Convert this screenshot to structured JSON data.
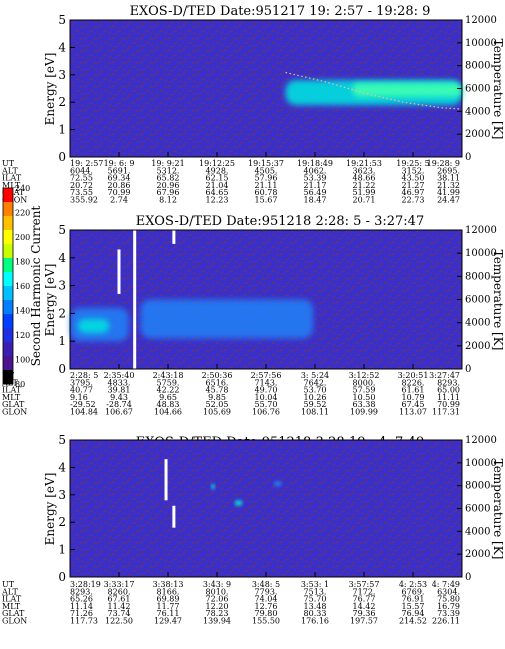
{
  "colorbar": {
    "label": "Second Harmonic Current",
    "ticks": [
      "240",
      "220",
      "200",
      "180",
      "160",
      "140",
      "120",
      "100",
      "80"
    ],
    "colors": [
      "#ff0000",
      "#ff8000",
      "#ffc000",
      "#ffff00",
      "#c8ff00",
      "#00ff80",
      "#00ffff",
      "#00c0ff",
      "#0080ff",
      "#0040ff",
      "#2030e0",
      "#3a1fb0",
      "#4b148f",
      "#000000"
    ]
  },
  "colors": {
    "background": "#3a30c8",
    "noise": "#a0301a"
  },
  "chart_data": [
    {
      "type": "heatmap",
      "title": "EXOS-D/TED   Date:951217  19: 2:57 - 19:28: 9",
      "ylabel": "Energy [eV]",
      "y2label": "Temperature [K]",
      "ylim": [
        0,
        5
      ],
      "y2lim": [
        0,
        12000
      ],
      "yticks": [
        "0",
        "1",
        "2",
        "3",
        "4",
        "5"
      ],
      "y2ticks": [
        "0",
        "2000",
        "4000",
        "6000",
        "8000",
        "10000",
        "12000"
      ],
      "features": [
        {
          "x0": 0.55,
          "x1": 1.0,
          "e0": 1.9,
          "e1": 2.8,
          "level": "high"
        },
        {
          "x0": 0.72,
          "x1": 1.0,
          "e0": 2.2,
          "e1": 2.7,
          "level": "peak"
        }
      ],
      "temperature_trace": {
        "x": [
          0.55,
          0.65,
          0.75,
          0.85,
          0.95,
          1.0
        ],
        "t": [
          7400,
          6600,
          5600,
          4800,
          4300,
          4200
        ]
      },
      "ephemeris": [
        {
          "label": "UT",
          "values": [
            "19: 2:57",
            "19: 6: 9",
            "19: 9:21",
            "19:12:25",
            "19:15:37",
            "19:18:49",
            "19:21:53",
            "19:25: 5",
            "19:28: 9"
          ]
        },
        {
          "label": "ALT",
          "values": [
            "6044.",
            "5691.",
            "5312.",
            "4928.",
            "4505.",
            "4062.",
            "3623.",
            "3152.",
            "2695."
          ]
        },
        {
          "label": "ILAT",
          "values": [
            "72.55",
            "69.34",
            "65.82",
            "62.15",
            "57.96",
            "53.39",
            "48.66",
            "43.50",
            "38.11"
          ]
        },
        {
          "label": "MLT",
          "values": [
            "20.72",
            "20.86",
            "20.96",
            "21.04",
            "21.11",
            "21.17",
            "21.22",
            "21.27",
            "21.32"
          ]
        },
        {
          "label": "GLAT",
          "values": [
            "73.55",
            "70.99",
            "67.96",
            "64.65",
            "60.78",
            "56.49",
            "51.99",
            "46.97",
            "41.99"
          ]
        },
        {
          "label": "GLON",
          "values": [
            "355.92",
            "2.74",
            "8.12",
            "12.23",
            "15.67",
            "18.47",
            "20.71",
            "22.73",
            "24.47"
          ]
        }
      ]
    },
    {
      "type": "heatmap",
      "title": "EXOS-D/TED   Date:951218  2:28: 5 - 3:27:47",
      "ylabel": "Energy [eV]",
      "y2label": "Temperature [K]",
      "ylim": [
        0,
        5
      ],
      "y2lim": [
        0,
        12000
      ],
      "yticks": [
        "0",
        "1",
        "2",
        "3",
        "4",
        "5"
      ],
      "y2ticks": [
        "0",
        "2000",
        "4000",
        "6000",
        "8000",
        "10000",
        "12000"
      ],
      "features": [
        {
          "x0": 0.0,
          "x1": 0.15,
          "e0": 1.0,
          "e1": 2.2,
          "level": "mid"
        },
        {
          "x0": 0.18,
          "x1": 0.62,
          "e0": 1.1,
          "e1": 2.5,
          "level": "mid"
        },
        {
          "x0": 0.02,
          "x1": 0.1,
          "e0": 1.3,
          "e1": 1.8,
          "level": "high"
        }
      ],
      "data_gaps": [
        {
          "x": 0.125,
          "e0": 2.7,
          "e1": 4.3
        },
        {
          "x": 0.165,
          "e0": 0.0,
          "e1": 5.0
        },
        {
          "x": 0.265,
          "e0": 4.5,
          "e1": 5.0
        }
      ],
      "ephemeris": [
        {
          "label": "UT",
          "values": [
            "2:28: 5",
            "2:35:40",
            "2:43:18",
            "2:50:36",
            "2:57:56",
            "3: 5:24",
            "3:12:52",
            "3:20:51",
            "3:27:47"
          ]
        },
        {
          "label": "ALT",
          "values": [
            "3795.",
            "4833.",
            "5759.",
            "6516.",
            "7143.",
            "7642.",
            "8000.",
            "8226.",
            "8293."
          ]
        },
        {
          "label": "ILAT",
          "values": [
            "40.77",
            "39.81",
            "42.22",
            "45.78",
            "49.70",
            "53.70",
            "57.59",
            "61.61",
            "65.00"
          ]
        },
        {
          "label": "MLT",
          "values": [
            "9.16",
            "9.43",
            "9.65",
            "9.85",
            "10.04",
            "10.26",
            "10.50",
            "10.79",
            "11.11"
          ]
        },
        {
          "label": "GLAT",
          "values": [
            "-29.52",
            "-28.74",
            "48.83",
            "52.05",
            "55.70",
            "59.52",
            "63.38",
            "67.45",
            "70.99"
          ]
        },
        {
          "label": "GLON",
          "values": [
            "104.84",
            "106.67",
            "104.66",
            "105.69",
            "106.76",
            "108.11",
            "109.99",
            "113.07",
            "117.31"
          ]
        }
      ]
    },
    {
      "type": "heatmap",
      "title": "EXOS-D/TED   Date:951218  3:28:19 - 4: 7:49",
      "ylabel": "Energy [eV]",
      "y2label": "Temperature [K]",
      "ylim": [
        0,
        5
      ],
      "y2lim": [
        0,
        12000
      ],
      "yticks": [
        "0",
        "1",
        "2",
        "3",
        "4",
        "5"
      ],
      "y2ticks": [
        "0",
        "2000",
        "4000",
        "6000",
        "8000",
        "10000",
        "12000"
      ],
      "features": [
        {
          "x0": 0.36,
          "x1": 0.37,
          "e0": 3.2,
          "e1": 3.4,
          "level": "high"
        },
        {
          "x0": 0.42,
          "x1": 0.44,
          "e0": 2.6,
          "e1": 2.8,
          "level": "high"
        },
        {
          "x0": 0.52,
          "x1": 0.54,
          "e0": 3.3,
          "e1": 3.5,
          "level": "mid"
        }
      ],
      "data_gaps": [
        {
          "x": 0.245,
          "e0": 2.8,
          "e1": 4.3
        },
        {
          "x": 0.265,
          "e0": 1.8,
          "e1": 2.6
        }
      ],
      "ephemeris": [
        {
          "label": "UT",
          "values": [
            "3:28:19",
            "3:33:17",
            "3:38:13",
            "3:43: 9",
            "3:48: 5",
            "3:53: 1",
            "3:57:57",
            "4: 2:53",
            "4: 7:49"
          ]
        },
        {
          "label": "ALT",
          "values": [
            "8293.",
            "8260.",
            "8166.",
            "8010.",
            "7793.",
            "7513.",
            "7172.",
            "6769.",
            "6304."
          ]
        },
        {
          "label": "ILAT",
          "values": [
            "65.26",
            "67.61",
            "69.89",
            "72.06",
            "74.04",
            "75.70",
            "76.77",
            "76.91",
            "75.80"
          ]
        },
        {
          "label": "MLT",
          "values": [
            "11.14",
            "11.42",
            "11.77",
            "12.20",
            "12.76",
            "13.48",
            "14.42",
            "15.57",
            "16.79"
          ]
        },
        {
          "label": "GLAT",
          "values": [
            "71.26",
            "73.74",
            "76.11",
            "78.23",
            "79.80",
            "80.33",
            "79.36",
            "76.94",
            "73.39"
          ]
        },
        {
          "label": "GLON",
          "values": [
            "117.73",
            "122.50",
            "129.47",
            "139.94",
            "155.50",
            "176.16",
            "197.57",
            "214.52",
            "226.11"
          ]
        }
      ]
    }
  ]
}
